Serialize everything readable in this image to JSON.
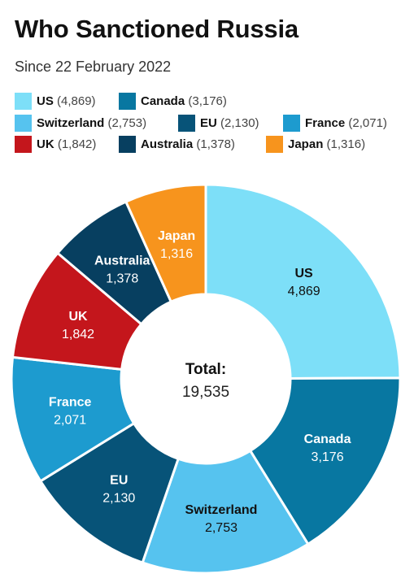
{
  "title": "Who Sanctioned Russia",
  "subtitle": "Since 22 February 2022",
  "legend": [
    {
      "name": "US",
      "count_text": "(4,869)",
      "color": "#7ddff8"
    },
    {
      "name": "Canada",
      "count_text": "(3,176)",
      "color": "#0877a1"
    },
    {
      "name": "Switzerland",
      "count_text": "(2,753)",
      "color": "#56c3ef"
    },
    {
      "name": "EU",
      "count_text": "(2,130)",
      "color": "#075378"
    },
    {
      "name": "France",
      "count_text": "(2,071)",
      "color": "#1d9bcf"
    },
    {
      "name": "UK",
      "count_text": "(1,842)",
      "color": "#c4161c"
    },
    {
      "name": "Australia",
      "count_text": "(1,378)",
      "color": "#073f60"
    },
    {
      "name": "Japan",
      "count_text": "(1,316)",
      "color": "#f7941d"
    }
  ],
  "center": {
    "label": "Total:",
    "value": "19,535"
  },
  "chart_data": {
    "type": "pie",
    "title": "Who Sanctioned Russia",
    "subtitle": "Since 22 February 2022",
    "categories": [
      "US",
      "Canada",
      "Switzerland",
      "EU",
      "France",
      "UK",
      "Australia",
      "Japan"
    ],
    "values": [
      4869,
      3176,
      2753,
      2130,
      2071,
      1842,
      1378,
      1316
    ],
    "value_labels": [
      "4,869",
      "3,176",
      "2,753",
      "2,130",
      "2,071",
      "1,842",
      "1,378",
      "1,316"
    ],
    "colors": [
      "#7ddff8",
      "#0877a1",
      "#56c3ef",
      "#075378",
      "#1d9bcf",
      "#c4161c",
      "#073f60",
      "#f7941d"
    ],
    "label_colors": [
      "#111111",
      "#ffffff",
      "#111111",
      "#ffffff",
      "#ffffff",
      "#ffffff",
      "#ffffff",
      "#ffffff"
    ],
    "donut": true,
    "total": 19535,
    "legend_position": "top"
  }
}
